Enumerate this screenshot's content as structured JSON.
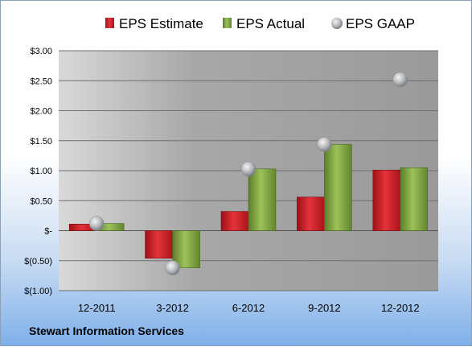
{
  "company": "Stewart Information Services",
  "chart_data": {
    "type": "bar",
    "categories": [
      "12-2011",
      "3-2012",
      "6-2012",
      "9-2012",
      "12-2012"
    ],
    "series": [
      {
        "name": "EPS Estimate",
        "kind": "bar",
        "color": "#d0232a",
        "values": [
          0.11,
          -0.46,
          0.32,
          0.56,
          1.01
        ]
      },
      {
        "name": "EPS Actual",
        "kind": "bar",
        "color": "#7fa344",
        "values": [
          0.12,
          -0.62,
          1.03,
          1.44,
          1.05
        ]
      },
      {
        "name": "EPS GAAP",
        "kind": "scatter",
        "color": "#b9bcc0",
        "values": [
          0.12,
          -0.62,
          1.03,
          1.44,
          2.52
        ]
      }
    ],
    "ylim": [
      -1.0,
      3.0
    ],
    "yticks": [
      -1.0,
      -0.5,
      0,
      0.5,
      1.0,
      1.5,
      2.0,
      2.5,
      3.0
    ],
    "ytick_labels": [
      "$(1.00)",
      "$(0.50)",
      "$-",
      "$0.50",
      "$1.00",
      "$1.50",
      "$2.00",
      "$2.50",
      "$3.00"
    ],
    "legend_position": "top",
    "grid": true,
    "plot_background": "#a6a6a6"
  }
}
